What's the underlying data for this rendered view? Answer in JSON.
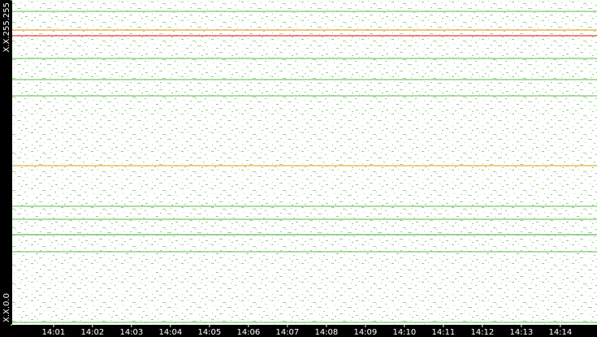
{
  "chart_data": {
    "type": "scatter",
    "xlim": [
      -0.06,
      14.94
    ],
    "xticks": [
      {
        "value": 1,
        "label": "14:01"
      },
      {
        "value": 2,
        "label": "14:02"
      },
      {
        "value": 3,
        "label": "14:03"
      },
      {
        "value": 4,
        "label": "14:04"
      },
      {
        "value": 5,
        "label": "14:05"
      },
      {
        "value": 6,
        "label": "14:06"
      },
      {
        "value": 7,
        "label": "14:07"
      },
      {
        "value": 8,
        "label": "14:08"
      },
      {
        "value": 9,
        "label": "14:09"
      },
      {
        "value": 10,
        "label": "14:10"
      },
      {
        "value": 11,
        "label": "14:11"
      },
      {
        "value": 12,
        "label": "14:12"
      },
      {
        "value": 13,
        "label": "14:13"
      },
      {
        "value": 14,
        "label": "14:14"
      }
    ],
    "ylim": [
      0,
      65535
    ],
    "yticks": [
      {
        "value": 0,
        "label": "X.X.0.0"
      },
      {
        "value": 65535,
        "label": "X.X.255.255"
      }
    ],
    "hlines": [
      {
        "y": 63241,
        "color": "#7ec86e"
      },
      {
        "y": 59473,
        "color": "#e8a040"
      },
      {
        "y": 58326,
        "color": "#e04030"
      },
      {
        "y": 53739,
        "color": "#7ec86e"
      },
      {
        "y": 49479,
        "color": "#7ec86e"
      },
      {
        "y": 46204,
        "color": "#7ec86e"
      },
      {
        "y": 32112,
        "color": "#e8b040"
      },
      {
        "y": 23920,
        "color": "#7ec86e"
      },
      {
        "y": 21299,
        "color": "#7ec86e"
      },
      {
        "y": 18187,
        "color": "#5fb85a"
      },
      {
        "y": 14745,
        "color": "#7ec86e"
      },
      {
        "y": 492,
        "color": "#7ec86e"
      }
    ]
  }
}
